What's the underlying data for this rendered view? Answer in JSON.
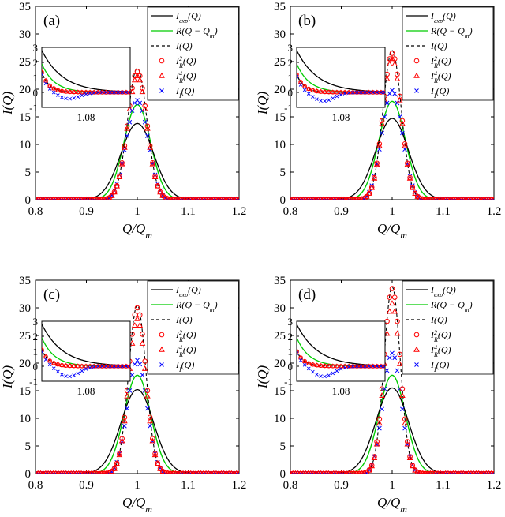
{
  "figure": {
    "x_axis_label": "Q/Q",
    "x_axis_label_sub": "m",
    "y_axis_label": "I(Q)"
  },
  "legend": {
    "entries": [
      {
        "base": "I",
        "sub": "exp",
        "sup": "",
        "arg": "(Q)",
        "color": "#000000",
        "style": "solid"
      },
      {
        "base": "R",
        "sub": "",
        "sup": "",
        "arg": "(Q − Q",
        "arg_sub": "m",
        "arg_end": ")",
        "color": "#00cc00",
        "style": "solid"
      },
      {
        "base": "I",
        "sub": "",
        "sup": "",
        "arg": "(Q)",
        "color": "#000000",
        "style": "dashed"
      },
      {
        "base": "I",
        "sub": "R",
        "sup": "2",
        "arg": "(Q)",
        "color": "#ff0000",
        "style": "circle"
      },
      {
        "base": "I",
        "sub": "R",
        "sup": "4",
        "arg": "(Q)",
        "color": "#ff0000",
        "style": "triangle"
      },
      {
        "base": "I",
        "sub": "I",
        "sup": "",
        "arg": "(Q)",
        "color": "#0000ff",
        "style": "x"
      }
    ]
  },
  "colors": {
    "exp": "#000000",
    "R": "#00cc00",
    "I": "#000000",
    "IR2": "#ff0000",
    "IR4": "#ff0000",
    "II": "#0000ff"
  },
  "chart_data": [
    {
      "panel": "(a)",
      "type": "line",
      "x_range": [
        0.8,
        1.2
      ],
      "y_range": [
        0,
        35
      ],
      "x_ticks": [
        "0.8",
        "0.9",
        "1",
        "1.1",
        "1.2"
      ],
      "y_ticks": [
        "0",
        "5",
        "10",
        "15",
        "20",
        "25",
        "30",
        "35"
      ],
      "series_params": {
        "I_exp_peak": 13.8,
        "I_exp_sigma": 0.032,
        "R_peak": 17.2,
        "R_sigma": 0.026,
        "I_peak": 23.8,
        "I_sigma": 0.019,
        "I_R2_peak": 23.2,
        "I_R4_peak": 22.4,
        "I_I_peak": 18.0
      },
      "inset": {
        "x_tick": "1.08",
        "y_ticks": [
          "-1",
          "0",
          "1",
          "2",
          "3"
        ],
        "y_range": [
          -1,
          3
        ],
        "exp_start": 2.8,
        "R_start": 1.9,
        "I_start": 1.35,
        "II_dip": -0.45
      }
    },
    {
      "panel": "(b)",
      "type": "line",
      "x_range": [
        0.8,
        1.2
      ],
      "y_range": [
        0,
        35
      ],
      "x_ticks": [
        "0.8",
        "0.9",
        "1",
        "1.1",
        "1.2"
      ],
      "y_ticks": [
        "0",
        "5",
        "10",
        "15",
        "20",
        "25",
        "30",
        "35"
      ],
      "series_params": {
        "I_exp_peak": 14.7,
        "I_exp_sigma": 0.032,
        "R_peak": 17.8,
        "R_sigma": 0.026,
        "I_peak": 27.0,
        "I_sigma": 0.018,
        "I_R2_peak": 26.5,
        "I_R4_peak": 25.5,
        "I_I_peak": 19.8
      },
      "inset": {
        "x_tick": "1.08",
        "y_ticks": [
          "-1",
          "0",
          "1",
          "2",
          "3"
        ],
        "y_range": [
          -1,
          3
        ],
        "exp_start": 2.8,
        "R_start": 1.9,
        "I_start": 1.2,
        "II_dip": -0.6
      }
    },
    {
      "panel": "(c)",
      "type": "line",
      "x_range": [
        0.8,
        1.2
      ],
      "y_range": [
        0,
        35
      ],
      "x_ticks": [
        "0.8",
        "0.9",
        "1",
        "1.1",
        "1.2"
      ],
      "y_ticks": [
        "0",
        "5",
        "10",
        "15",
        "20",
        "25",
        "30",
        "35"
      ],
      "series_params": {
        "I_exp_peak": 15.2,
        "I_exp_sigma": 0.032,
        "R_peak": 17.8,
        "R_sigma": 0.026,
        "I_peak": 30.5,
        "I_sigma": 0.017,
        "I_R2_peak": 30.0,
        "I_R4_peak": 28.0,
        "I_I_peak": 20.5
      },
      "inset": {
        "x_tick": "1.08",
        "y_ticks": [
          "-1",
          "0",
          "1",
          "2",
          "3"
        ],
        "y_range": [
          -1,
          3
        ],
        "exp_start": 2.8,
        "R_start": 1.9,
        "I_start": 1.1,
        "II_dip": -0.7
      }
    },
    {
      "panel": "(d)",
      "type": "line",
      "x_range": [
        0.8,
        1.2
      ],
      "y_range": [
        0,
        35
      ],
      "x_ticks": [
        "0.8",
        "0.9",
        "1",
        "1.1",
        "1.2"
      ],
      "y_ticks": [
        "0",
        "5",
        "10",
        "15",
        "20",
        "25",
        "30",
        "35"
      ],
      "series_params": {
        "I_exp_peak": 15.5,
        "I_exp_sigma": 0.032,
        "R_peak": 17.8,
        "R_sigma": 0.026,
        "I_peak": 33.8,
        "I_sigma": 0.016,
        "I_R2_peak": 33.5,
        "I_R4_peak": 30.8,
        "I_I_peak": 21.8
      },
      "inset": {
        "x_tick": "1.08",
        "y_ticks": [
          "-1",
          "0",
          "1",
          "2",
          "3"
        ],
        "y_range": [
          -1,
          3
        ],
        "exp_start": 2.8,
        "R_start": 1.9,
        "I_start": 1.0,
        "II_dip": -0.7
      }
    }
  ]
}
